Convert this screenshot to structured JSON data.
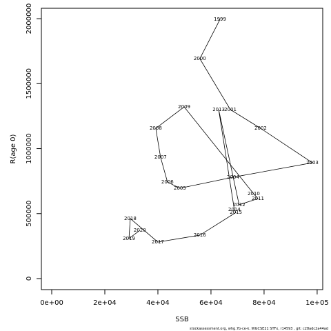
{
  "chart_data": {
    "type": "line",
    "x_label": "SSB",
    "y_label": "R(age 0)",
    "footer": "stockassessment.org, whg.7b-ce-k. WGCSE21 STFx, r14593 , git: c28adc2a44ad",
    "x": [
      63400,
      55800,
      67300,
      78700,
      98200,
      68300,
      48300,
      43600,
      41000,
      39200,
      49900,
      76100,
      77700,
      70600,
      62900,
      68800,
      69400,
      55800,
      40000,
      29600,
      29100,
      33200
    ],
    "values": [
      1995000,
      1692000,
      1300000,
      1156000,
      891000,
      780000,
      695000,
      743000,
      934000,
      1156000,
      1321000,
      652000,
      615000,
      568000,
      1300000,
      530000,
      509000,
      334000,
      281000,
      462000,
      308000,
      371000
    ],
    "point_labels": [
      "1999",
      "2000",
      "2001",
      "2002",
      "2003",
      "2004",
      "2005",
      "2006",
      "2007",
      "2008",
      "2009",
      "2010",
      "2011",
      "2012",
      "2013",
      "2014",
      "2015",
      "2016",
      "2017",
      "2018",
      "2019",
      "2020"
    ],
    "line_color": "#000000",
    "label_color": "#ff0000",
    "xlim": [
      -3900,
      102100
    ],
    "ylim": [
      -85000,
      2080000
    ],
    "xticks": [
      {
        "value": 0,
        "label": "0e+00"
      },
      {
        "value": 20000,
        "label": "2e+04"
      },
      {
        "value": 40000,
        "label": "4e+04"
      },
      {
        "value": 60000,
        "label": "6e+04"
      },
      {
        "value": 80000,
        "label": "8e+04"
      },
      {
        "value": 100000,
        "label": "1e+05"
      }
    ],
    "yticks": [
      0,
      500000,
      1000000,
      1500000,
      2000000
    ]
  }
}
